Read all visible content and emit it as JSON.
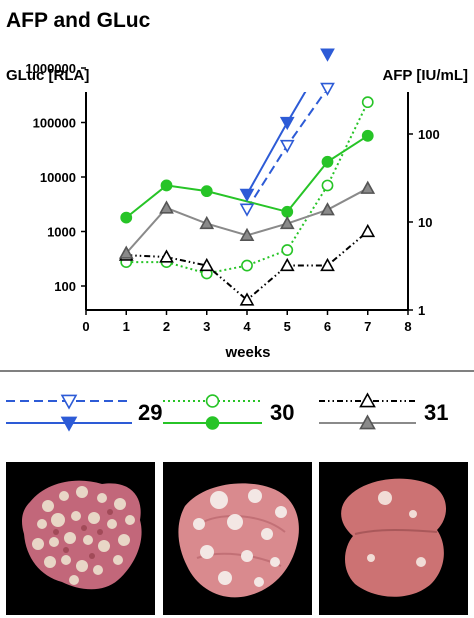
{
  "chart_data": {
    "type": "line",
    "title": "AFP and GLuc",
    "xlabel": "weeks",
    "ylabel_left": "GLuc [RLA]",
    "ylabel_right": "AFP [IU/mL]",
    "x_ticks": [
      "0",
      "1",
      "2",
      "3",
      "4",
      "5",
      "6",
      "7",
      "8"
    ],
    "xlim": [
      0,
      8
    ],
    "y_left_scale": "log",
    "y_left_lim": [
      100,
      1000000
    ],
    "y_left_ticks": [
      "100",
      "1000",
      "10000",
      "100000",
      "1000000"
    ],
    "y_right_scale": "log",
    "y_right_lim": [
      1,
      300
    ],
    "y_right_ticks": [
      "1",
      "10",
      "100"
    ],
    "grid": false,
    "legend_placement": "below plot",
    "series": [
      {
        "mouse": "29",
        "measure": "AFP",
        "axis": "right",
        "color": "#2d5bd6",
        "line": "dashed",
        "marker": "triangle-down-open",
        "x": [
          4,
          5,
          6
        ],
        "values": [
          14,
          74,
          330
        ]
      },
      {
        "mouse": "29",
        "measure": "GLuc",
        "axis": "left",
        "color": "#2d5bd6",
        "line": "solid",
        "marker": "triangle-down-filled",
        "x": [
          4,
          5,
          6
        ],
        "values": [
          4800,
          100000,
          1800000
        ]
      },
      {
        "mouse": "30",
        "measure": "AFP",
        "axis": "right",
        "color": "#27c427",
        "line": "dotted",
        "marker": "circle-open",
        "x": [
          1,
          2,
          3,
          4,
          5,
          6,
          7
        ],
        "values": [
          3.5,
          3.5,
          2.6,
          3.2,
          4.8,
          26,
          230
        ]
      },
      {
        "mouse": "30",
        "measure": "GLuc",
        "axis": "left",
        "color": "#27c427",
        "line": "solid",
        "marker": "circle-filled",
        "x": [
          1,
          2,
          3,
          5,
          6,
          7
        ],
        "values": [
          1800,
          7000,
          5500,
          2300,
          19000,
          57000
        ]
      },
      {
        "mouse": "31",
        "measure": "AFP",
        "axis": "right",
        "color": "#000000",
        "line": "dashdotdot",
        "marker": "triangle-up-open",
        "x": [
          1,
          2,
          3,
          4,
          5,
          6,
          7
        ],
        "values": [
          4.2,
          4.0,
          3.2,
          1.3,
          3.2,
          3.2,
          7.8
        ]
      },
      {
        "mouse": "31",
        "measure": "GLuc",
        "axis": "left",
        "color": "#8a8a8a",
        "line": "solid",
        "marker": "triangle-up-filled",
        "x": [
          1,
          2,
          3,
          4,
          5,
          6,
          7
        ],
        "values": [
          400,
          2700,
          1400,
          850,
          1400,
          2500,
          6200
        ]
      }
    ],
    "legend": [
      {
        "label": "29",
        "series_indices": [
          0,
          1
        ]
      },
      {
        "label": "30",
        "series_indices": [
          2,
          3
        ]
      },
      {
        "label": "31",
        "series_indices": [
          4,
          5
        ]
      }
    ]
  },
  "photos": [
    {
      "mouse": "29"
    },
    {
      "mouse": "30"
    },
    {
      "mouse": "31"
    }
  ]
}
